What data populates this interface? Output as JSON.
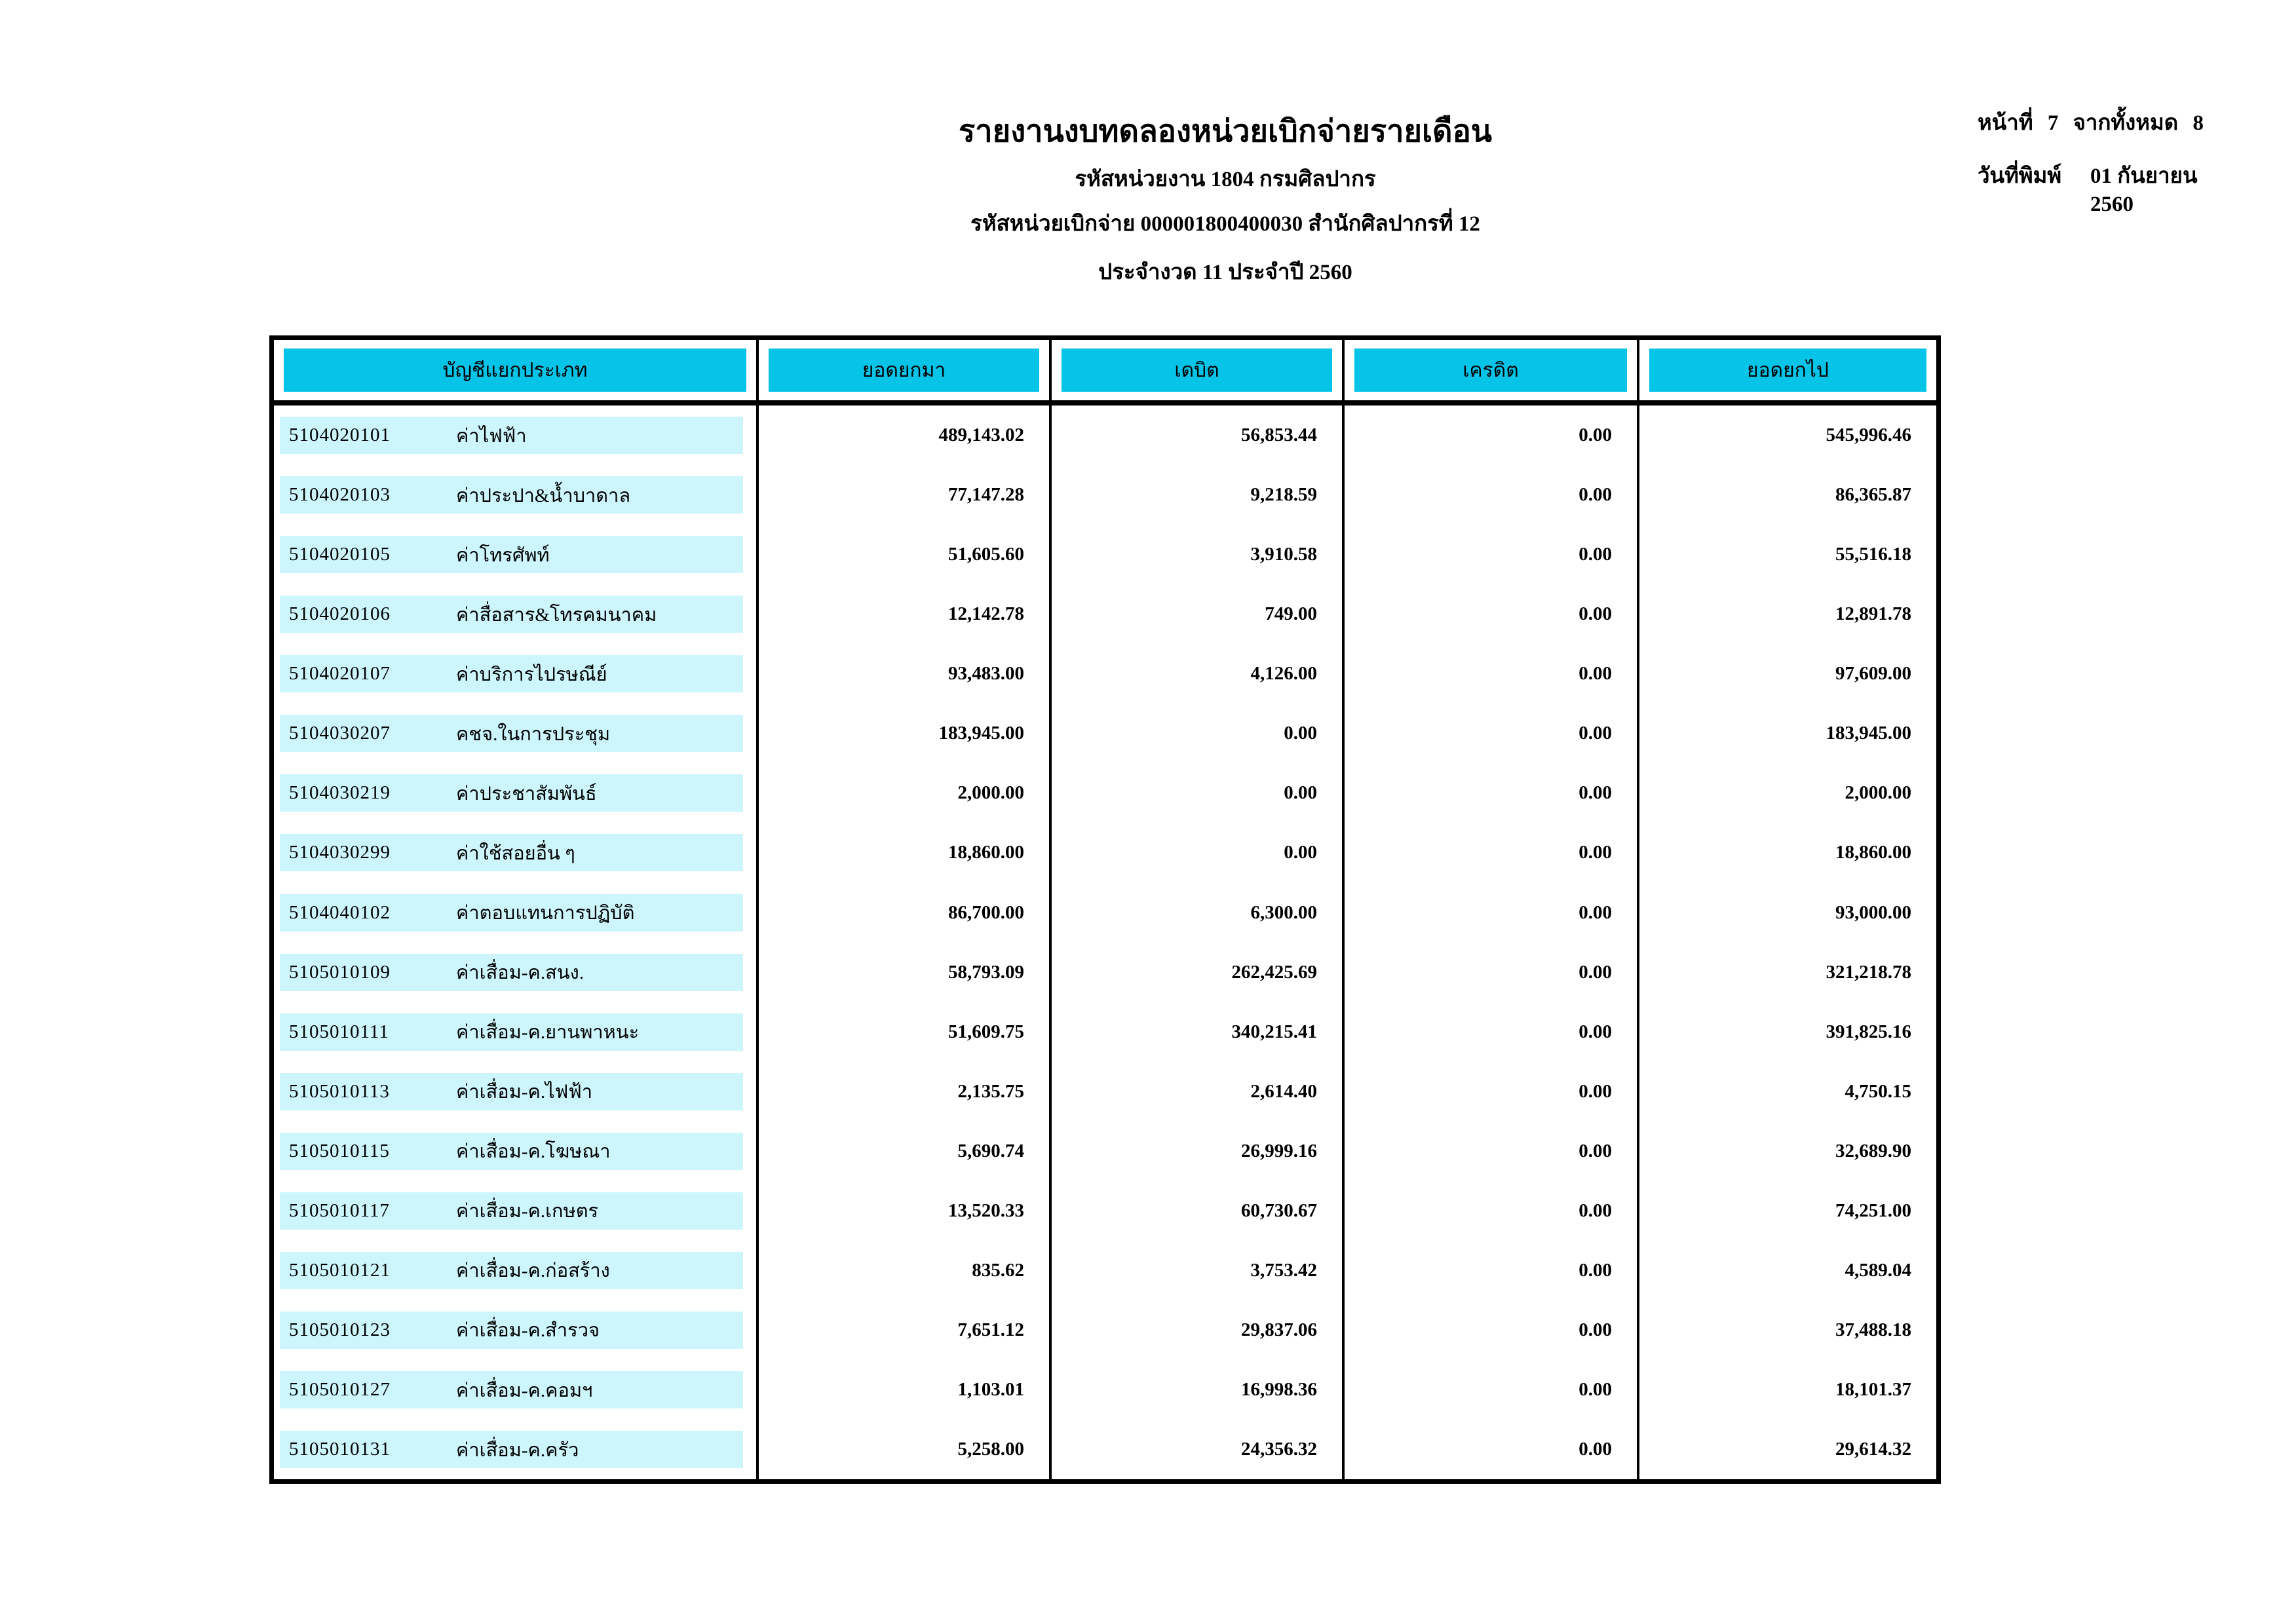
{
  "report": {
    "title": "รายงานงบทดลองหน่วยเบิกจ่ายรายเดือน",
    "agency_line": "รหัสหน่วยงาน 1804 กรมศิลปากร",
    "disbursement_line": "รหัสหน่วยเบิกจ่าย 000001800400030 สำนักศิลปากรที่ 12",
    "period_line": "ประจำงวด 11 ประจำปี 2560"
  },
  "page_info": {
    "page_label": "หน้าที่",
    "page_number": "7",
    "total_label": "จากทั้งหมด",
    "total_pages": "8",
    "print_date_label": "วันที่พิมพ์",
    "print_date": "01 กันยายน 2560"
  },
  "colors": {
    "header_fill": "#06C3E8",
    "row_fill": "#CCF5FC"
  },
  "table": {
    "columns": [
      "บัญชีแยกประเภท",
      "ยอดยกมา",
      "เดบิต",
      "เครดิต",
      "ยอดยกไป"
    ],
    "rows": [
      {
        "code": "5104020101",
        "name": "ค่าไฟฟ้า",
        "brought_forward": "489,143.02",
        "debit": "56,853.44",
        "credit": "0.00",
        "carried_forward": "545,996.46"
      },
      {
        "code": "5104020103",
        "name": "ค่าประปา&น้ำบาดาล",
        "brought_forward": "77,147.28",
        "debit": "9,218.59",
        "credit": "0.00",
        "carried_forward": "86,365.87"
      },
      {
        "code": "5104020105",
        "name": "ค่าโทรศัพท์",
        "brought_forward": "51,605.60",
        "debit": "3,910.58",
        "credit": "0.00",
        "carried_forward": "55,516.18"
      },
      {
        "code": "5104020106",
        "name": "ค่าสื่อสาร&โทรคมนาคม",
        "brought_forward": "12,142.78",
        "debit": "749.00",
        "credit": "0.00",
        "carried_forward": "12,891.78"
      },
      {
        "code": "5104020107",
        "name": "ค่าบริการไปรษณีย์",
        "brought_forward": "93,483.00",
        "debit": "4,126.00",
        "credit": "0.00",
        "carried_forward": "97,609.00"
      },
      {
        "code": "5104030207",
        "name": "คชจ.ในการประชุม",
        "brought_forward": "183,945.00",
        "debit": "0.00",
        "credit": "0.00",
        "carried_forward": "183,945.00"
      },
      {
        "code": "5104030219",
        "name": "ค่าประชาสัมพันธ์",
        "brought_forward": "2,000.00",
        "debit": "0.00",
        "credit": "0.00",
        "carried_forward": "2,000.00"
      },
      {
        "code": "5104030299",
        "name": "ค่าใช้สอยอื่น ๆ",
        "brought_forward": "18,860.00",
        "debit": "0.00",
        "credit": "0.00",
        "carried_forward": "18,860.00"
      },
      {
        "code": "5104040102",
        "name": "ค่าตอบแทนการปฏิบัติ",
        "brought_forward": "86,700.00",
        "debit": "6,300.00",
        "credit": "0.00",
        "carried_forward": "93,000.00"
      },
      {
        "code": "5105010109",
        "name": "ค่าเสื่อม-ค.สนง.",
        "brought_forward": "58,793.09",
        "debit": "262,425.69",
        "credit": "0.00",
        "carried_forward": "321,218.78"
      },
      {
        "code": "5105010111",
        "name": "ค่าเสื่อม-ค.ยานพาหนะ",
        "brought_forward": "51,609.75",
        "debit": "340,215.41",
        "credit": "0.00",
        "carried_forward": "391,825.16"
      },
      {
        "code": "5105010113",
        "name": "ค่าเสื่อม-ค.ไฟฟ้า",
        "brought_forward": "2,135.75",
        "debit": "2,614.40",
        "credit": "0.00",
        "carried_forward": "4,750.15"
      },
      {
        "code": "5105010115",
        "name": "ค่าเสื่อม-ค.โฆษณา",
        "brought_forward": "5,690.74",
        "debit": "26,999.16",
        "credit": "0.00",
        "carried_forward": "32,689.90"
      },
      {
        "code": "5105010117",
        "name": "ค่าเสื่อม-ค.เกษตร",
        "brought_forward": "13,520.33",
        "debit": "60,730.67",
        "credit": "0.00",
        "carried_forward": "74,251.00"
      },
      {
        "code": "5105010121",
        "name": "ค่าเสื่อม-ค.ก่อสร้าง",
        "brought_forward": "835.62",
        "debit": "3,753.42",
        "credit": "0.00",
        "carried_forward": "4,589.04"
      },
      {
        "code": "5105010123",
        "name": "ค่าเสื่อม-ค.สำรวจ",
        "brought_forward": "7,651.12",
        "debit": "29,837.06",
        "credit": "0.00",
        "carried_forward": "37,488.18"
      },
      {
        "code": "5105010127",
        "name": "ค่าเสื่อม-ค.คอมฯ",
        "brought_forward": "1,103.01",
        "debit": "16,998.36",
        "credit": "0.00",
        "carried_forward": "18,101.37"
      },
      {
        "code": "5105010131",
        "name": "ค่าเสื่อม-ค.ครัว",
        "brought_forward": "5,258.00",
        "debit": "24,356.32",
        "credit": "0.00",
        "carried_forward": "29,614.32"
      }
    ]
  }
}
